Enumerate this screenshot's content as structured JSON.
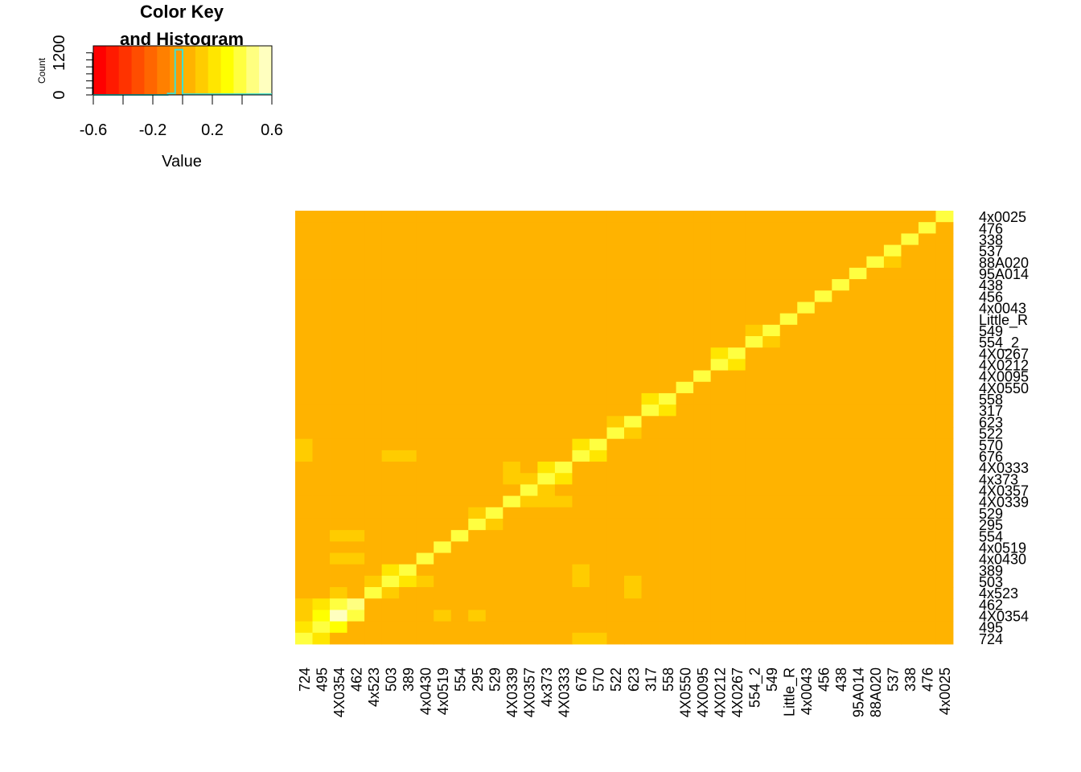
{
  "chart_data": {
    "type": "heatmap",
    "key": {
      "title_line1": "Color Key",
      "title_line2": "and Histogram",
      "xlabel": "Value",
      "ylabel": "Count",
      "x_ticks": [
        "-0.6",
        "-0.2",
        "0.2",
        "0.6"
      ],
      "x_tick_values": [
        -0.6,
        -0.2,
        0.2,
        0.6
      ],
      "y_ticks": [
        "0",
        "1200"
      ],
      "y_tick_values": [
        0,
        1200
      ],
      "xlim": [
        -0.6,
        0.6
      ],
      "ylim": [
        0,
        1400
      ],
      "histogram_bins": [
        {
          "x0": -0.6,
          "x1": -0.1,
          "count": 0
        },
        {
          "x0": -0.1,
          "x1": -0.05,
          "count": 40
        },
        {
          "x0": -0.05,
          "x1": 0.0,
          "count": 1290
        },
        {
          "x0": 0.0,
          "x1": 0.6,
          "count": 20
        }
      ],
      "histogram_color": "#40e0d0",
      "color_breaks": [
        "#ff0000",
        "#ff1a00",
        "#ff3300",
        "#ff4d00",
        "#ff6600",
        "#ff8000",
        "#ff9900",
        "#ffb300",
        "#ffcc00",
        "#ffe600",
        "#ffff00",
        "#ffff40",
        "#ffff80",
        "#ffffbf"
      ]
    },
    "row_labels": [
      "4x0025",
      "476",
      "338",
      "537",
      "88A020",
      "95A014",
      "438",
      "456",
      "4x0043",
      "Little_R",
      "549",
      "554_2",
      "4X0267",
      "4X0212",
      "4X0095",
      "4X0550",
      "558",
      "317",
      "623",
      "522",
      "570",
      "676",
      "4X0333",
      "4x373",
      "4X0357",
      "4X0339",
      "529",
      "295",
      "554",
      "4x0519",
      "4x0430",
      "389",
      "503",
      "4x523",
      "462",
      "4X0354",
      "495",
      "724"
    ],
    "column_labels": [
      "724",
      "495",
      "4X0354",
      "462",
      "4x523",
      "503",
      "389",
      "4x0430",
      "4x0519",
      "554",
      "295",
      "529",
      "4X0339",
      "4X0357",
      "4x373",
      "4X0333",
      "676",
      "570",
      "522",
      "623",
      "317",
      "558",
      "4X0550",
      "4X0095",
      "4X0212",
      "4X0267",
      "554_2",
      "549",
      "Little_R",
      "4x0043",
      "456",
      "438",
      "95A014",
      "88A020",
      "537",
      "338",
      "476",
      "4x0025"
    ],
    "value_range": [
      -0.6,
      0.6
    ],
    "background_value": 0.0,
    "diagonal_value": 0.4,
    "cells": [
      {
        "r": "4X0354",
        "c": "4X0354",
        "v": 0.6
      },
      {
        "r": "462",
        "c": "462",
        "v": 0.5
      },
      {
        "r": "4X0354",
        "c": "462",
        "v": 0.4
      },
      {
        "r": "462",
        "c": "4X0354",
        "v": 0.4
      },
      {
        "r": "495",
        "c": "4X0354",
        "v": 0.3
      },
      {
        "r": "4X0354",
        "c": "495",
        "v": 0.3
      },
      {
        "r": "462",
        "c": "495",
        "v": 0.2
      },
      {
        "r": "724",
        "c": "495",
        "v": 0.2
      },
      {
        "r": "495",
        "c": "724",
        "v": 0.2
      },
      {
        "r": "462",
        "c": "724",
        "v": 0.1
      },
      {
        "r": "4X0354",
        "c": "724",
        "v": 0.1
      },
      {
        "r": "4x523",
        "c": "4X0354",
        "v": 0.1
      },
      {
        "r": "503",
        "c": "389",
        "v": 0.25
      },
      {
        "r": "389",
        "c": "503",
        "v": 0.25
      },
      {
        "r": "503",
        "c": "4x0430",
        "v": 0.15
      },
      {
        "r": "4x523",
        "c": "503",
        "v": 0.15
      },
      {
        "r": "503",
        "c": "4x523",
        "v": 0.15
      },
      {
        "r": "4X0333",
        "c": "4x373",
        "v": 0.25
      },
      {
        "r": "4x373",
        "c": "4X0333",
        "v": 0.25
      },
      {
        "r": "4x373",
        "c": "4X0357",
        "v": 0.15
      },
      {
        "r": "4X0357",
        "c": "4x373",
        "v": 0.15
      },
      {
        "r": "4x373",
        "c": "4X0339",
        "v": 0.1
      },
      {
        "r": "4X0333",
        "c": "4X0339",
        "v": 0.1
      },
      {
        "r": "4X0339",
        "c": "4X0357",
        "v": 0.1
      },
      {
        "r": "4X0339",
        "c": "4x373",
        "v": 0.1
      },
      {
        "r": "4X0339",
        "c": "4X0333",
        "v": 0.1
      },
      {
        "r": "529",
        "c": "295",
        "v": 0.15
      },
      {
        "r": "295",
        "c": "529",
        "v": 0.15
      },
      {
        "r": "570",
        "c": "676",
        "v": 0.2
      },
      {
        "r": "676",
        "c": "570",
        "v": 0.2
      },
      {
        "r": "558",
        "c": "317",
        "v": 0.2
      },
      {
        "r": "317",
        "c": "558",
        "v": 0.2
      },
      {
        "r": "623",
        "c": "522",
        "v": 0.15
      },
      {
        "r": "522",
        "c": "623",
        "v": 0.15
      },
      {
        "r": "4X0212",
        "c": "4X0267",
        "v": 0.2
      },
      {
        "r": "4X0267",
        "c": "4X0212",
        "v": 0.2
      },
      {
        "r": "554_2",
        "c": "549",
        "v": 0.15
      },
      {
        "r": "549",
        "c": "554_2",
        "v": 0.15
      },
      {
        "r": "88A020",
        "c": "537",
        "v": 0.1
      },
      {
        "r": "570",
        "c": "724",
        "v": 0.1
      },
      {
        "r": "676",
        "c": "724",
        "v": 0.1
      },
      {
        "r": "676",
        "c": "503",
        "v": 0.1
      },
      {
        "r": "676",
        "c": "389",
        "v": 0.1
      },
      {
        "r": "623",
        "c": "4x523",
        "v": 0.05
      },
      {
        "r": "623",
        "c": "503",
        "v": 0.05
      },
      {
        "r": "623",
        "c": "389",
        "v": 0.05
      },
      {
        "r": "554",
        "c": "4X0354",
        "v": 0.1
      },
      {
        "r": "554",
        "c": "462",
        "v": 0.1
      },
      {
        "r": "4x0430",
        "c": "4X0354",
        "v": 0.1
      },
      {
        "r": "4x0430",
        "c": "462",
        "v": 0.1
      },
      {
        "r": "4X0354",
        "c": "4x0519",
        "v": 0.1
      },
      {
        "r": "4X0354",
        "c": "295",
        "v": 0.1
      },
      {
        "r": "389",
        "c": "676",
        "v": 0.1
      },
      {
        "r": "503",
        "c": "676",
        "v": 0.1
      },
      {
        "r": "4x523",
        "c": "623",
        "v": 0.1
      },
      {
        "r": "503",
        "c": "623",
        "v": 0.1
      },
      {
        "r": "724",
        "c": "676",
        "v": 0.1
      },
      {
        "r": "724",
        "c": "570",
        "v": 0.1
      },
      {
        "r": "4X0333",
        "c": "724",
        "v": 0.0
      }
    ]
  }
}
